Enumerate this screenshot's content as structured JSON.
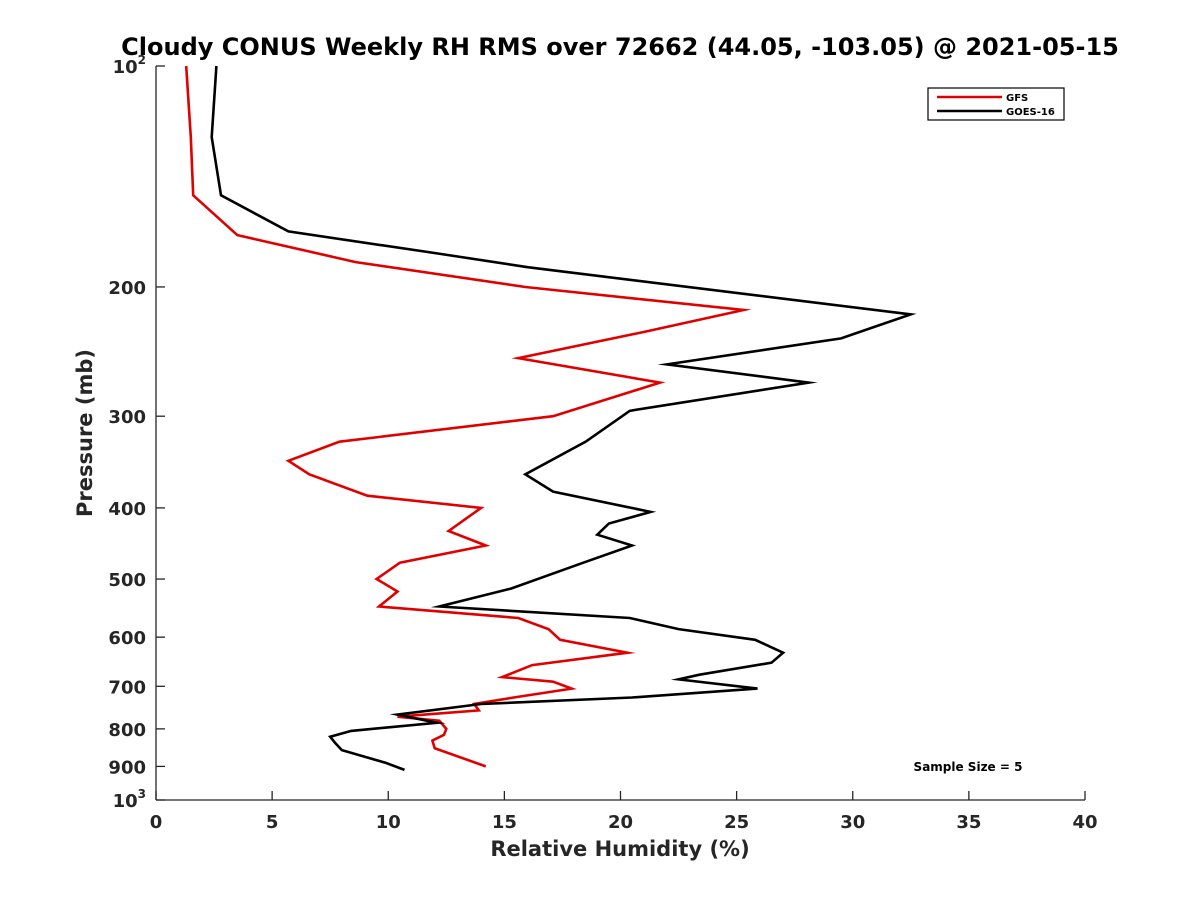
{
  "chart_data": {
    "type": "line",
    "title": "Cloudy CONUS Weekly RH RMS over 72662 (44.05, -103.05) @ 2021-05-15",
    "xlabel": "Relative Humidity (%)",
    "ylabel": "Pressure (mb)",
    "xlim": [
      0,
      40
    ],
    "ylim": [
      100,
      1000
    ],
    "y_scale": "log",
    "y_reversed": true,
    "grid": false,
    "legend_position": "top-right",
    "x_ticks": [
      0,
      5,
      10,
      15,
      20,
      25,
      30,
      35,
      40
    ],
    "y_ticks": [
      {
        "value": 100,
        "base": "10",
        "exp": "2"
      },
      {
        "value": 200,
        "label": "200"
      },
      {
        "value": 300,
        "label": "300"
      },
      {
        "value": 400,
        "label": "400"
      },
      {
        "value": 500,
        "label": "500"
      },
      {
        "value": 600,
        "label": "600"
      },
      {
        "value": 700,
        "label": "700"
      },
      {
        "value": 800,
        "label": "800"
      },
      {
        "value": 900,
        "label": "900"
      },
      {
        "value": 1000,
        "base": "10",
        "exp": "3"
      }
    ],
    "annotation": "Sample Size = 5",
    "series": [
      {
        "name": "GFS",
        "color": "#e00000",
        "points": [
          [
            1.3,
            100
          ],
          [
            1.5,
            125
          ],
          [
            1.6,
            150
          ],
          [
            3.5,
            170
          ],
          [
            8.6,
            185
          ],
          [
            15.9,
            200
          ],
          [
            25.3,
            215
          ],
          [
            21.1,
            230
          ],
          [
            15.6,
            250
          ],
          [
            21.7,
            270
          ],
          [
            17.1,
            300
          ],
          [
            7.9,
            325
          ],
          [
            5.7,
            345
          ],
          [
            6.6,
            360
          ],
          [
            9.1,
            385
          ],
          [
            14.0,
            400
          ],
          [
            12.6,
            430
          ],
          [
            14.2,
            450
          ],
          [
            10.5,
            475
          ],
          [
            9.5,
            500
          ],
          [
            10.4,
            520
          ],
          [
            9.6,
            545
          ],
          [
            15.6,
            565
          ],
          [
            16.9,
            585
          ],
          [
            17.4,
            605
          ],
          [
            20.3,
            630
          ],
          [
            16.2,
            655
          ],
          [
            14.9,
            680
          ],
          [
            17.1,
            690
          ],
          [
            17.9,
            705
          ],
          [
            15.4,
            725
          ],
          [
            13.7,
            740
          ],
          [
            13.9,
            755
          ],
          [
            10.4,
            770
          ],
          [
            12.2,
            780
          ],
          [
            12.5,
            800
          ],
          [
            12.4,
            815
          ],
          [
            11.9,
            830
          ],
          [
            12.0,
            850
          ],
          [
            14.2,
            900
          ]
        ]
      },
      {
        "name": "GOES-16",
        "color": "#000000",
        "points": [
          [
            2.6,
            100
          ],
          [
            2.4,
            125
          ],
          [
            2.8,
            150
          ],
          [
            5.7,
            168
          ],
          [
            12.1,
            180
          ],
          [
            16.0,
            188
          ],
          [
            32.5,
            218
          ],
          [
            29.5,
            235
          ],
          [
            22.0,
            255
          ],
          [
            28.1,
            270
          ],
          [
            20.4,
            295
          ],
          [
            18.5,
            325
          ],
          [
            15.9,
            360
          ],
          [
            17.1,
            380
          ],
          [
            21.3,
            405
          ],
          [
            19.5,
            420
          ],
          [
            19.0,
            435
          ],
          [
            20.5,
            450
          ],
          [
            18.4,
            475
          ],
          [
            15.3,
            515
          ],
          [
            12.2,
            545
          ],
          [
            20.4,
            565
          ],
          [
            22.5,
            585
          ],
          [
            25.8,
            605
          ],
          [
            27.0,
            630
          ],
          [
            26.5,
            650
          ],
          [
            23.4,
            675
          ],
          [
            22.5,
            685
          ],
          [
            25.9,
            705
          ],
          [
            20.5,
            725
          ],
          [
            14.0,
            740
          ],
          [
            10.4,
            765
          ],
          [
            12.1,
            785
          ],
          [
            8.4,
            805
          ],
          [
            7.5,
            820
          ],
          [
            7.7,
            835
          ],
          [
            8.0,
            855
          ],
          [
            9.9,
            890
          ],
          [
            10.7,
            910
          ]
        ]
      }
    ]
  }
}
